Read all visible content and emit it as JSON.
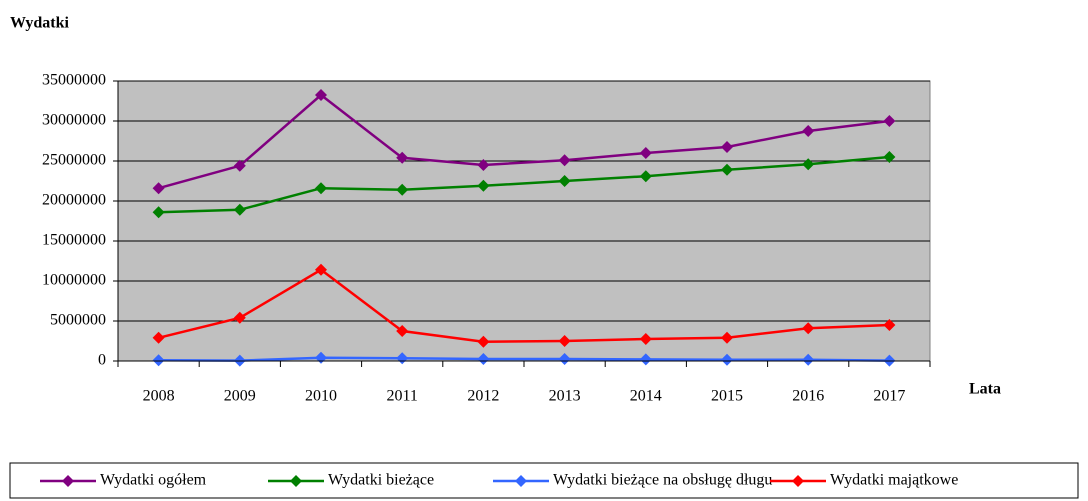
{
  "chart_data": {
    "type": "line",
    "title": "Wydatki",
    "x_label": "Lata",
    "categories": [
      "2008",
      "2009",
      "2010",
      "2011",
      "2012",
      "2013",
      "2014",
      "2015",
      "2016",
      "2017"
    ],
    "series": [
      {
        "name": "Wydatki ogółem",
        "color": "#800080",
        "values": [
          21600000,
          24400000,
          33250000,
          25400000,
          24500000,
          25100000,
          26000000,
          26750000,
          28750000,
          30000000
        ]
      },
      {
        "name": "Wydatki bieżące",
        "color": "#008000",
        "values": [
          18600000,
          18900000,
          21600000,
          21400000,
          21900000,
          22500000,
          23100000,
          23900000,
          24600000,
          25500000
        ]
      },
      {
        "name": "Wydatki bieżące na obsługę długu",
        "color": "#3366ff",
        "values": [
          100000,
          50000,
          400000,
          350000,
          250000,
          250000,
          200000,
          150000,
          150000,
          50000
        ]
      },
      {
        "name": "Wydatki majątkowe",
        "color": "#ff0000",
        "values": [
          2900000,
          5400000,
          11400000,
          3750000,
          2400000,
          2500000,
          2750000,
          2900000,
          4100000,
          4500000
        ]
      }
    ],
    "ylim": [
      0,
      35000000
    ],
    "yticks": [
      0,
      5000000,
      10000000,
      15000000,
      20000000,
      25000000,
      30000000,
      35000000
    ],
    "grid": true,
    "legend": "bottom",
    "plot_background": "#c0c0c0"
  }
}
